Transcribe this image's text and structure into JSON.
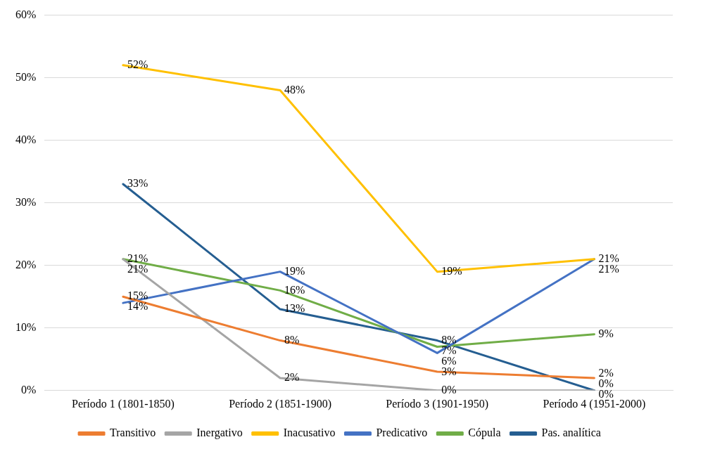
{
  "chart_data": {
    "type": "line",
    "categories": [
      "Período 1 (1801-1850)",
      "Período 2 (1851-1900)",
      "Período 3 (1901-1950)",
      "Período 4 (1951-2000)"
    ],
    "ylim": [
      0,
      60
    ],
    "yticks": [
      {
        "value": 0,
        "label": "0%"
      },
      {
        "value": 10,
        "label": "10%"
      },
      {
        "value": 20,
        "label": "20%"
      },
      {
        "value": 30,
        "label": "30%"
      },
      {
        "value": 40,
        "label": "40%"
      },
      {
        "value": 50,
        "label": "50%"
      },
      {
        "value": 60,
        "label": "60%"
      }
    ],
    "grid": "y",
    "legend": "bottom",
    "marker": "none",
    "line_style": "solid",
    "series": [
      {
        "name": "Transitivo",
        "color": "#ed7d31",
        "values": [
          15,
          8,
          3,
          2
        ],
        "value_labels": [
          "15%",
          "8%",
          "3%",
          "2%"
        ]
      },
      {
        "name": "Inergativo",
        "color": "#a5a5a5",
        "values": [
          21,
          2,
          0,
          0
        ],
        "value_labels": [
          "21%",
          "2%",
          "0%",
          "0%"
        ]
      },
      {
        "name": "Inacusativo",
        "color": "#ffc000",
        "values": [
          52,
          48,
          19,
          21
        ],
        "value_labels": [
          "52%",
          "48%",
          "19%",
          "21%"
        ]
      },
      {
        "name": "Predicativo",
        "color": "#4472c4",
        "values": [
          14,
          19,
          6,
          21
        ],
        "value_labels": [
          "14%",
          "19%",
          "6%",
          "21%"
        ]
      },
      {
        "name": "Cópula",
        "color": "#70ad47",
        "values": [
          21,
          16,
          7,
          9
        ],
        "value_labels": [
          "21%",
          "16%",
          "7%",
          "9%"
        ]
      },
      {
        "name": "Pas. analítica",
        "color": "#255e91",
        "values": [
          33,
          13,
          8,
          0
        ],
        "value_labels": [
          "33%",
          "13%",
          "8%",
          "0%"
        ]
      }
    ]
  }
}
